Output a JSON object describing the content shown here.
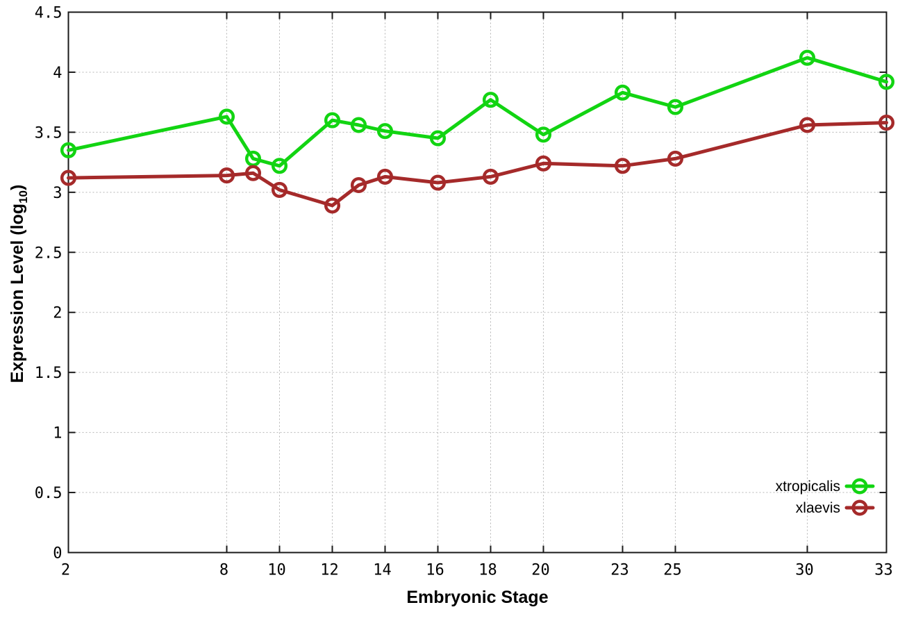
{
  "chart_data": {
    "type": "line",
    "title": "",
    "xlabel": "Embryonic Stage",
    "ylabel": {
      "prefix": "Expression Level (log",
      "sub": "10",
      "suffix": ")"
    },
    "xlim": [
      2,
      33
    ],
    "ylim": [
      0,
      4.5
    ],
    "x_ticks": [
      2,
      8,
      10,
      12,
      14,
      16,
      18,
      20,
      23,
      25,
      30,
      33
    ],
    "y_ticks": [
      0,
      0.5,
      1,
      1.5,
      2,
      2.5,
      3,
      3.5,
      4,
      4.5
    ],
    "grid": true,
    "grid_style": "dotted",
    "legend": {
      "position": "inside-bottom-right",
      "entries": [
        "xtropicalis",
        "xlaevis"
      ]
    },
    "series": [
      {
        "name": "xtropicalis",
        "color": "#12d412",
        "marker": "open-circle",
        "x": [
          2,
          8,
          9,
          10,
          12,
          13,
          14,
          16,
          18,
          20,
          23,
          25,
          30,
          33
        ],
        "y": [
          3.35,
          3.63,
          3.28,
          3.22,
          3.6,
          3.56,
          3.51,
          3.45,
          3.77,
          3.48,
          3.83,
          3.71,
          4.12,
          3.92
        ]
      },
      {
        "name": "xlaevis",
        "color": "#a52a2a",
        "marker": "open-circle",
        "x": [
          2,
          8,
          9,
          10,
          12,
          13,
          14,
          16,
          18,
          20,
          23,
          25,
          30,
          33
        ],
        "y": [
          3.12,
          3.14,
          3.16,
          3.02,
          2.89,
          3.06,
          3.13,
          3.08,
          3.13,
          3.24,
          3.22,
          3.28,
          3.56,
          3.58
        ]
      }
    ]
  },
  "styles": {
    "background": "#ffffff",
    "frame_color": "#1a1a1a",
    "grid_color": "#b5b5b5",
    "text_color": "#000000"
  }
}
